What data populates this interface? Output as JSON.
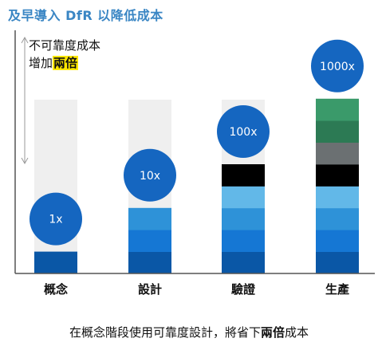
{
  "title": "及早導入 DfR 以降低成本",
  "note": {
    "line1": "不可靠度成本",
    "line2_pre": "增加",
    "line2_highlight": "兩倍"
  },
  "caption": {
    "pre": "在概念階段使用可靠度設計，將省下",
    "bold": "兩倍",
    "post": "成本"
  },
  "colors": {
    "track": "#efefef",
    "bubble": "#1566c0",
    "title": "#3a86c4",
    "highlight": "#ffe800"
  },
  "chart_data": {
    "type": "bar",
    "categories": [
      "概念",
      "設計",
      "驗證",
      "生產"
    ],
    "multipliers": [
      "1x",
      "10x",
      "100x",
      "1000x"
    ],
    "bars": [
      {
        "segments": [
          "#0a57a6"
        ]
      },
      {
        "segments": [
          "#0a57a6",
          "#1577d4",
          "#2e92d8"
        ]
      },
      {
        "segments": [
          "#0a57a6",
          "#1577d4",
          "#2e92d8",
          "#62b8e8",
          "#000000"
        ]
      },
      {
        "segments": [
          "#0a57a6",
          "#1577d4",
          "#2e92d8",
          "#62b8e8",
          "#000000",
          "#6b7072",
          "#2c7a54",
          "#3a9a6a"
        ]
      }
    ]
  }
}
